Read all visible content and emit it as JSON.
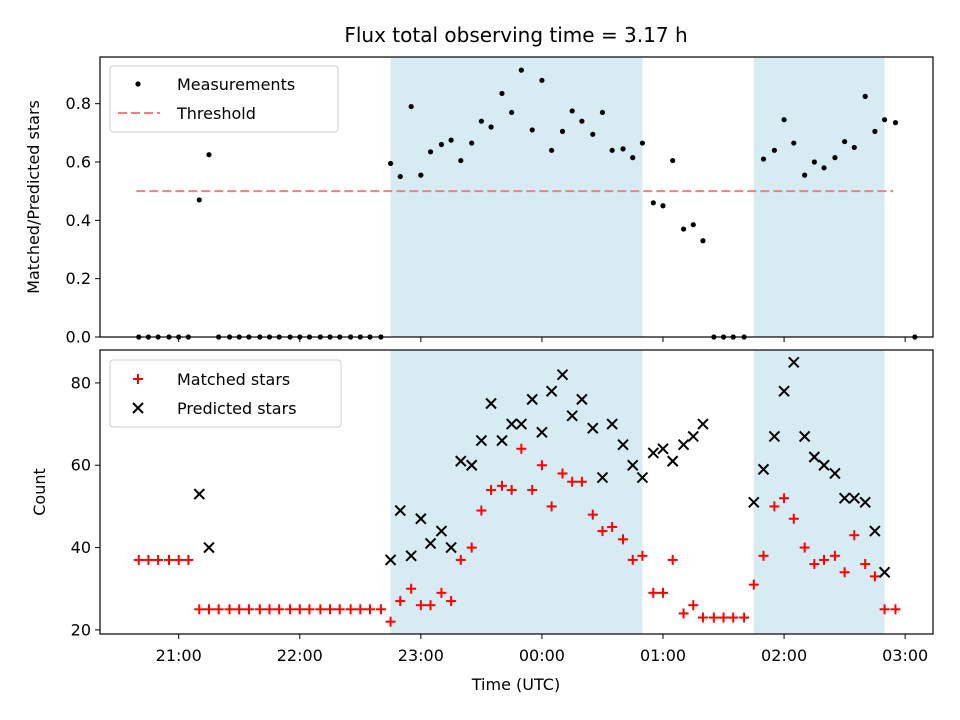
{
  "chart_data": {
    "type": "scatter",
    "title": "Flux total observing time = 3.17 h",
    "xlabel": "Time (UTC)",
    "x_unit": "hours since 21:00 UTC",
    "x_ticks": [
      {
        "v": 0,
        "label": "21:00"
      },
      {
        "v": 1,
        "label": "22:00"
      },
      {
        "v": 2,
        "label": "23:00"
      },
      {
        "v": 3,
        "label": "00:00"
      },
      {
        "v": 4,
        "label": "01:00"
      },
      {
        "v": 5,
        "label": "02:00"
      },
      {
        "v": 6,
        "label": "03:00"
      }
    ],
    "xlim": [
      -0.65,
      6.23
    ],
    "shaded_ranges": [
      [
        1.75,
        3.83
      ],
      [
        4.75,
        5.83
      ]
    ],
    "shade_color": "#add8e6",
    "top": {
      "ylabel": "Matched/Predicted stars",
      "ylim": [
        0,
        0.96
      ],
      "y_ticks": [
        "0.0",
        "0.2",
        "0.4",
        "0.6",
        "0.8"
      ],
      "legend": {
        "placement": "upper left",
        "measurements": "Measurements",
        "threshold": "Threshold"
      },
      "threshold": {
        "value": 0.5,
        "x_range": [
          -0.35,
          5.9
        ],
        "color": "#f08080"
      },
      "measurements": [
        [
          -0.33,
          0
        ],
        [
          -0.25,
          0
        ],
        [
          -0.17,
          0
        ],
        [
          -0.08,
          0
        ],
        [
          0.0,
          0
        ],
        [
          0.08,
          0
        ],
        [
          0.17,
          0.47
        ],
        [
          0.25,
          0.625
        ],
        [
          0.33,
          0
        ],
        [
          0.42,
          0
        ],
        [
          0.5,
          0
        ],
        [
          0.58,
          0
        ],
        [
          0.67,
          0
        ],
        [
          0.75,
          0
        ],
        [
          0.83,
          0
        ],
        [
          0.92,
          0
        ],
        [
          1.0,
          0
        ],
        [
          1.08,
          0
        ],
        [
          1.17,
          0
        ],
        [
          1.25,
          0
        ],
        [
          1.33,
          0
        ],
        [
          1.42,
          0
        ],
        [
          1.5,
          0
        ],
        [
          1.58,
          0
        ],
        [
          1.67,
          0
        ],
        [
          1.75,
          0.595
        ],
        [
          1.83,
          0.55
        ],
        [
          1.92,
          0.79
        ],
        [
          2.0,
          0.555
        ],
        [
          2.08,
          0.635
        ],
        [
          2.17,
          0.66
        ],
        [
          2.25,
          0.675
        ],
        [
          2.33,
          0.605
        ],
        [
          2.42,
          0.665
        ],
        [
          2.5,
          0.74
        ],
        [
          2.58,
          0.72
        ],
        [
          2.67,
          0.835
        ],
        [
          2.75,
          0.77
        ],
        [
          2.83,
          0.915
        ],
        [
          2.92,
          0.71
        ],
        [
          3.0,
          0.88
        ],
        [
          3.08,
          0.64
        ],
        [
          3.17,
          0.705
        ],
        [
          3.25,
          0.775
        ],
        [
          3.33,
          0.74
        ],
        [
          3.42,
          0.695
        ],
        [
          3.5,
          0.77
        ],
        [
          3.58,
          0.64
        ],
        [
          3.67,
          0.645
        ],
        [
          3.75,
          0.615
        ],
        [
          3.83,
          0.665
        ],
        [
          3.92,
          0.46
        ],
        [
          4.0,
          0.45
        ],
        [
          4.08,
          0.605
        ],
        [
          4.17,
          0.37
        ],
        [
          4.25,
          0.385
        ],
        [
          4.33,
          0.33
        ],
        [
          4.42,
          0
        ],
        [
          4.5,
          0
        ],
        [
          4.58,
          0
        ],
        [
          4.67,
          0
        ],
        [
          4.83,
          0.61
        ],
        [
          4.92,
          0.64
        ],
        [
          5.0,
          0.745
        ],
        [
          5.08,
          0.665
        ],
        [
          5.17,
          0.555
        ],
        [
          5.25,
          0.6
        ],
        [
          5.33,
          0.58
        ],
        [
          5.42,
          0.615
        ],
        [
          5.5,
          0.67
        ],
        [
          5.58,
          0.65
        ],
        [
          5.67,
          0.825
        ],
        [
          5.75,
          0.705
        ],
        [
          5.83,
          0.745
        ],
        [
          5.92,
          0.735
        ],
        [
          6.08,
          0
        ]
      ]
    },
    "bottom": {
      "ylabel": "Count",
      "ylim": [
        19,
        88
      ],
      "y_ticks": [
        "20",
        "40",
        "60",
        "80"
      ],
      "legend": {
        "placement": "upper left",
        "matched": "Matched stars",
        "predicted": "Predicted stars"
      },
      "series": [
        {
          "name": "Matched stars",
          "marker": "+",
          "color": "#ff0000",
          "points": [
            [
              -0.33,
              37
            ],
            [
              -0.25,
              37
            ],
            [
              -0.17,
              37
            ],
            [
              -0.08,
              37
            ],
            [
              0.0,
              37
            ],
            [
              0.08,
              37
            ],
            [
              0.17,
              25
            ],
            [
              0.25,
              25
            ],
            [
              0.33,
              25
            ],
            [
              0.42,
              25
            ],
            [
              0.5,
              25
            ],
            [
              0.58,
              25
            ],
            [
              0.67,
              25
            ],
            [
              0.75,
              25
            ],
            [
              0.83,
              25
            ],
            [
              0.92,
              25
            ],
            [
              1.0,
              25
            ],
            [
              1.08,
              25
            ],
            [
              1.17,
              25
            ],
            [
              1.25,
              25
            ],
            [
              1.33,
              25
            ],
            [
              1.42,
              25
            ],
            [
              1.5,
              25
            ],
            [
              1.58,
              25
            ],
            [
              1.67,
              25
            ],
            [
              1.75,
              22
            ],
            [
              1.83,
              27
            ],
            [
              1.92,
              30
            ],
            [
              2.0,
              26
            ],
            [
              2.08,
              26
            ],
            [
              2.17,
              29
            ],
            [
              2.25,
              27
            ],
            [
              2.33,
              37
            ],
            [
              2.42,
              40
            ],
            [
              2.5,
              49
            ],
            [
              2.58,
              54
            ],
            [
              2.67,
              55
            ],
            [
              2.75,
              54
            ],
            [
              2.83,
              64
            ],
            [
              2.92,
              54
            ],
            [
              3.0,
              60
            ],
            [
              3.08,
              50
            ],
            [
              3.17,
              58
            ],
            [
              3.25,
              56
            ],
            [
              3.33,
              56
            ],
            [
              3.42,
              48
            ],
            [
              3.5,
              44
            ],
            [
              3.58,
              45
            ],
            [
              3.67,
              42
            ],
            [
              3.75,
              37
            ],
            [
              3.83,
              38
            ],
            [
              3.92,
              29
            ],
            [
              4.0,
              29
            ],
            [
              4.08,
              37
            ],
            [
              4.17,
              24
            ],
            [
              4.25,
              26
            ],
            [
              4.33,
              23
            ],
            [
              4.42,
              23
            ],
            [
              4.5,
              23
            ],
            [
              4.58,
              23
            ],
            [
              4.67,
              23
            ],
            [
              4.75,
              31
            ],
            [
              4.83,
              38
            ],
            [
              4.92,
              50
            ],
            [
              5.0,
              52
            ],
            [
              5.08,
              47
            ],
            [
              5.17,
              40
            ],
            [
              5.25,
              36
            ],
            [
              5.33,
              37
            ],
            [
              5.42,
              38
            ],
            [
              5.5,
              34
            ],
            [
              5.58,
              43
            ],
            [
              5.67,
              36
            ],
            [
              5.75,
              33
            ],
            [
              5.83,
              25
            ],
            [
              5.92,
              25
            ]
          ]
        },
        {
          "name": "Predicted stars",
          "marker": "x",
          "color": "#000000",
          "points": [
            [
              0.17,
              53
            ],
            [
              0.25,
              40
            ],
            [
              1.75,
              37
            ],
            [
              1.83,
              49
            ],
            [
              1.92,
              38
            ],
            [
              2.0,
              47
            ],
            [
              2.08,
              41
            ],
            [
              2.17,
              44
            ],
            [
              2.25,
              40
            ],
            [
              2.33,
              61
            ],
            [
              2.42,
              60
            ],
            [
              2.5,
              66
            ],
            [
              2.58,
              75
            ],
            [
              2.67,
              66
            ],
            [
              2.75,
              70
            ],
            [
              2.83,
              70
            ],
            [
              2.92,
              76
            ],
            [
              3.0,
              68
            ],
            [
              3.08,
              78
            ],
            [
              3.17,
              82
            ],
            [
              3.25,
              72
            ],
            [
              3.33,
              76
            ],
            [
              3.42,
              69
            ],
            [
              3.5,
              57
            ],
            [
              3.58,
              70
            ],
            [
              3.67,
              65
            ],
            [
              3.75,
              60
            ],
            [
              3.83,
              57
            ],
            [
              3.92,
              63
            ],
            [
              4.0,
              64
            ],
            [
              4.08,
              61
            ],
            [
              4.17,
              65
            ],
            [
              4.25,
              67
            ],
            [
              4.33,
              70
            ],
            [
              4.75,
              51
            ],
            [
              4.83,
              59
            ],
            [
              4.92,
              67
            ],
            [
              5.0,
              78
            ],
            [
              5.08,
              85
            ],
            [
              5.17,
              67
            ],
            [
              5.25,
              62
            ],
            [
              5.33,
              60
            ],
            [
              5.42,
              58
            ],
            [
              5.5,
              52
            ],
            [
              5.58,
              52
            ],
            [
              5.67,
              51
            ],
            [
              5.75,
              44
            ],
            [
              5.83,
              34
            ]
          ]
        }
      ]
    }
  }
}
